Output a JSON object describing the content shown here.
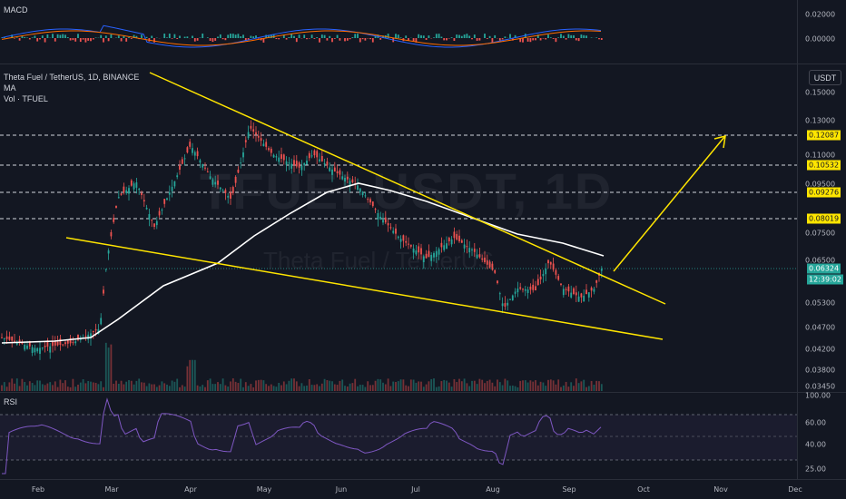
{
  "panes": {
    "macd_label": "MACD",
    "rsi_label": "RSI"
  },
  "legend": {
    "symbol": "Theta Fuel / TetherUS, 1D, BINANCE",
    "ma": "MA",
    "vol": "Vol · TFUEL"
  },
  "watermark": {
    "ticker": "TFUELUSDT, 1D",
    "name": "Theta Fuel / TetherUS"
  },
  "unit_button": "USDT",
  "macd_axis": [
    "0.02000",
    "0.00000"
  ],
  "price_axis": [
    "0.15000",
    "0.13000",
    "0.11000",
    "0.09500",
    "0.07500",
    "0.06500",
    "0.05300",
    "0.04700",
    "0.04200",
    "0.03800",
    "0.03450"
  ],
  "level_tags": [
    "0.12087",
    "0.10532",
    "0.09276",
    "0.08019"
  ],
  "current_price": "0.06324",
  "countdown": "12:39:02",
  "rsi_axis": [
    "100.00",
    "60.00",
    "40.00",
    "25.00"
  ],
  "time_axis": [
    "Feb",
    "Mar",
    "Apr",
    "May",
    "Jun",
    "Jul",
    "Aug",
    "Sep",
    "Oct",
    "Nov",
    "Dec"
  ],
  "colors": {
    "background": "#131722",
    "up": "#26a69a",
    "down": "#ef5350",
    "trendline": "#ffe500",
    "ma": "#ffffff",
    "rsi": "#7e57c2"
  }
}
